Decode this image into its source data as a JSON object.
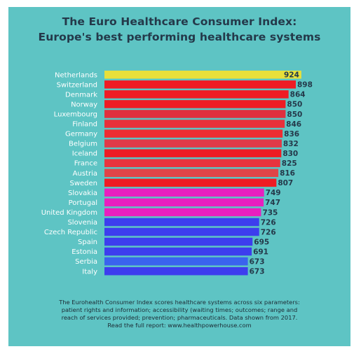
{
  "title": {
    "line1": "The Euro Healthcare Consumer Index:",
    "line2": "Europe's best performing healthcare systems"
  },
  "chart_data": {
    "type": "bar",
    "orientation": "horizontal",
    "categories": [
      "Netherlands",
      "Switzerland",
      "Denmark",
      "Norway",
      "Luxembourg",
      "Finland",
      "Germany",
      "Belgium",
      "Iceland",
      "France",
      "Austria",
      "Sweden",
      "Slovakia",
      "Portugal",
      "United Kingdom",
      "Slovenia",
      "Czech Republic",
      "Spain",
      "Estonia",
      "Serbia",
      "Italy"
    ],
    "values": [
      924,
      898,
      864,
      850,
      850,
      846,
      836,
      832,
      830,
      825,
      816,
      807,
      749,
      747,
      735,
      726,
      726,
      695,
      691,
      673,
      673
    ],
    "bar_colors": [
      "#e8e03a",
      "#ee1c24",
      "#ee1c24",
      "#ee1c24",
      "#e0303e",
      "#e8303a",
      "#ee2d32",
      "#e03a48",
      "#ee1c24",
      "#e8343e",
      "#e04448",
      "#ee1c24",
      "#e81fbf",
      "#e81fbf",
      "#e81fbf",
      "#3d3dee",
      "#3d3dee",
      "#3d3dee",
      "#3d3dee",
      "#3a63ee",
      "#3d3dee"
    ],
    "value_color": "#24394a",
    "label_color": "#ffffff"
  },
  "footnote": {
    "line1": "The Eurohealth Consumer Index scores healthcare systems across six parameters:",
    "line2": "patient rights and information; accessibility (waiting times; outcomes; range and",
    "line3": "reach of services provided; prevention; pharmaceuticals. Data shown from 2017.",
    "line4": "Read the full report: www.healthpowerhouse.com"
  }
}
